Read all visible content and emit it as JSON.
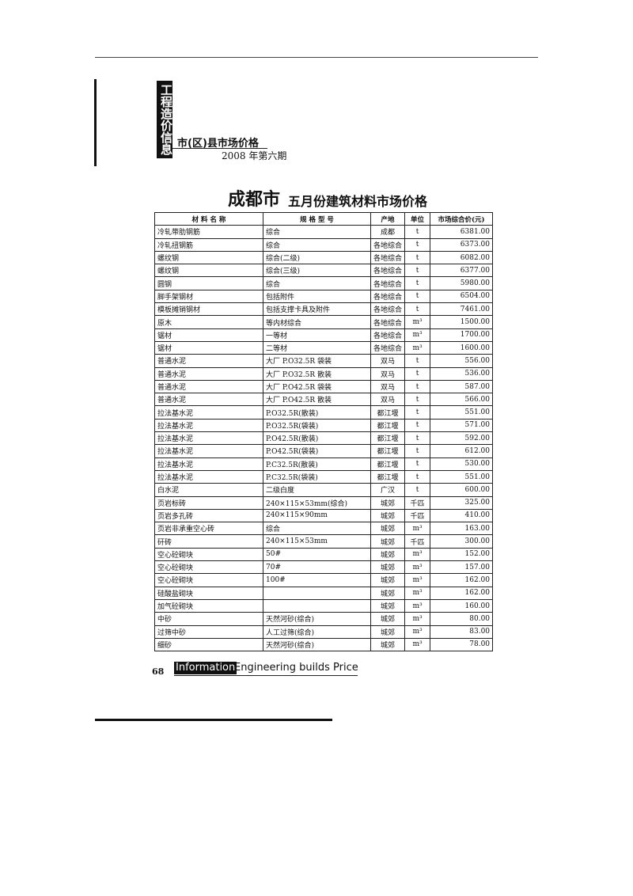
{
  "header": {
    "badge": "工程造价信息",
    "section": "市(区)县市场价格",
    "issue": "2008 年第六期"
  },
  "title": {
    "city": "成都市",
    "text": "五月份建筑材料市场价格"
  },
  "table": {
    "columns": [
      "材 料 名 称",
      "规 格 型 号",
      "产地",
      "单位",
      "市场综合价(元)"
    ],
    "rows": [
      [
        "冷轧带肋钢筋",
        "综合",
        "成都",
        "t",
        "6381.00"
      ],
      [
        "冷轧扭钢筋",
        "综合",
        "各地综合",
        "t",
        "6373.00"
      ],
      [
        "螺纹钢",
        "综合(二级)",
        "各地综合",
        "t",
        "6082.00"
      ],
      [
        "螺纹钢",
        "综合(三级)",
        "各地综合",
        "t",
        "6377.00"
      ],
      [
        "圆钢",
        "综合",
        "各地综合",
        "t",
        "5980.00"
      ],
      [
        "脚手架钢材",
        "包括附件",
        "各地综合",
        "t",
        "6504.00"
      ],
      [
        "模板摊销钢材",
        "包括支撑卡具及附件",
        "各地综合",
        "t",
        "7461.00"
      ],
      [
        "原木",
        "等内材综合",
        "各地综合",
        "m³",
        "1500.00"
      ],
      [
        "锯材",
        "一等材",
        "各地综合",
        "m³",
        "1700.00"
      ],
      [
        "锯材",
        "二等材",
        "各地综合",
        "m³",
        "1600.00"
      ],
      [
        "普通水泥",
        "大厂 P.O32.5R 袋装",
        "双马",
        "t",
        "556.00"
      ],
      [
        "普通水泥",
        "大厂 P.O32.5R 散装",
        "双马",
        "t",
        "536.00"
      ],
      [
        "普通水泥",
        "大厂 P.O42.5R 袋装",
        "双马",
        "t",
        "587.00"
      ],
      [
        "普通水泥",
        "大厂 P.O42.5R 散装",
        "双马",
        "t",
        "566.00"
      ],
      [
        "拉法基水泥",
        "P.O32.5R(散装)",
        "都江堰",
        "t",
        "551.00"
      ],
      [
        "拉法基水泥",
        "P.O32.5R(袋装)",
        "都江堰",
        "t",
        "571.00"
      ],
      [
        "拉法基水泥",
        "P.O42.5R(散装)",
        "都江堰",
        "t",
        "592.00"
      ],
      [
        "拉法基水泥",
        "P.O42.5R(袋装)",
        "都江堰",
        "t",
        "612.00"
      ],
      [
        "拉法基水泥",
        "P.C32.5R(散装)",
        "都江堰",
        "t",
        "530.00"
      ],
      [
        "拉法基水泥",
        "P.C32.5R(袋装)",
        "都江堰",
        "t",
        "551.00"
      ],
      [
        "白水泥",
        "二级白度",
        "广汉",
        "t",
        "600.00"
      ],
      [
        "页岩标砖",
        "240×115×53mm(综合)",
        "城郊",
        "千匹",
        "325.00"
      ],
      [
        "页岩多孔砖",
        "240×115×90mm",
        "城郊",
        "千匹",
        "410.00"
      ],
      [
        "页岩非承重空心砖",
        "综合",
        "城郊",
        "m³",
        "163.00"
      ],
      [
        "矸砖",
        "240×115×53mm",
        "城郊",
        "千匹",
        "300.00"
      ],
      [
        "空心砼砌块",
        "50#",
        "城郊",
        "m³",
        "152.00"
      ],
      [
        "空心砼砌块",
        "70#",
        "城郊",
        "m³",
        "157.00"
      ],
      [
        "空心砼砌块",
        "100#",
        "城郊",
        "m³",
        "162.00"
      ],
      [
        "硅酸盐砌块",
        null,
        "城郊",
        "m³",
        "162.00"
      ],
      [
        "加气砼砌块",
        null,
        "城郊",
        "m³",
        "160.00"
      ],
      [
        "中砂",
        "天然河砂(综合)",
        "城郊",
        "m³",
        "80.00"
      ],
      [
        "过筛中砂",
        "人工过筛(综合)",
        "城郊",
        "m³",
        "83.00"
      ],
      [
        "细砂",
        "天然河砂(综合)",
        "城郊",
        "m³",
        "78.00"
      ]
    ]
  },
  "footer": {
    "page": "68",
    "badge": "Information",
    "slogan": "Engineering builds Price"
  }
}
